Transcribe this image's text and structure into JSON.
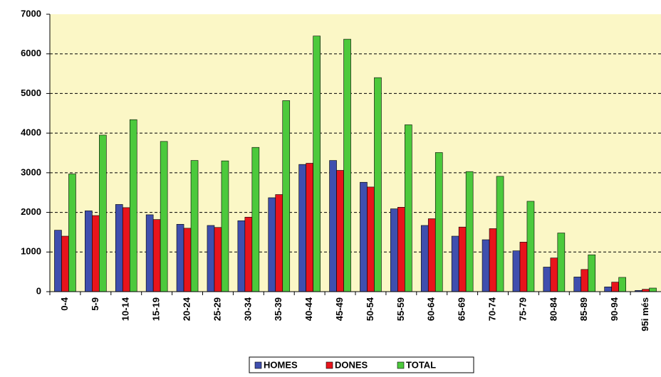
{
  "chart_data": {
    "type": "bar",
    "categories": [
      "0-4",
      "5-9",
      "10-14",
      "15-19",
      "20-24",
      "25-29",
      "30-34",
      "35-39",
      "40-44",
      "45-49",
      "50-54",
      "55-59",
      "60-64",
      "65-69",
      "70-74",
      "75-79",
      "80-84",
      "85-89",
      "90-94",
      "95i més"
    ],
    "series": [
      {
        "name": "HOMES",
        "color": "#3f4fae",
        "values": [
          1550,
          2040,
          2200,
          1940,
          1700,
          1670,
          1790,
          2370,
          3210,
          3310,
          2760,
          2090,
          1670,
          1400,
          1310,
          1030,
          620,
          370,
          120,
          30
        ]
      },
      {
        "name": "DONES",
        "color": "#e8141c",
        "values": [
          1400,
          1920,
          2120,
          1820,
          1600,
          1620,
          1880,
          2450,
          3240,
          3060,
          2640,
          2130,
          1840,
          1630,
          1590,
          1250,
          850,
          560,
          240,
          60
        ]
      },
      {
        "name": "TOTAL",
        "color": "#4cc93c",
        "values": [
          2970,
          3950,
          4340,
          3790,
          3310,
          3300,
          3640,
          4820,
          6450,
          6370,
          5400,
          4210,
          3510,
          3030,
          2910,
          2280,
          1480,
          930,
          360,
          90
        ]
      }
    ],
    "ylim": [
      0,
      7000
    ],
    "yticks": [
      0,
      1000,
      2000,
      3000,
      4000,
      5000,
      6000,
      7000
    ],
    "grid": true,
    "legend": "bottom"
  }
}
